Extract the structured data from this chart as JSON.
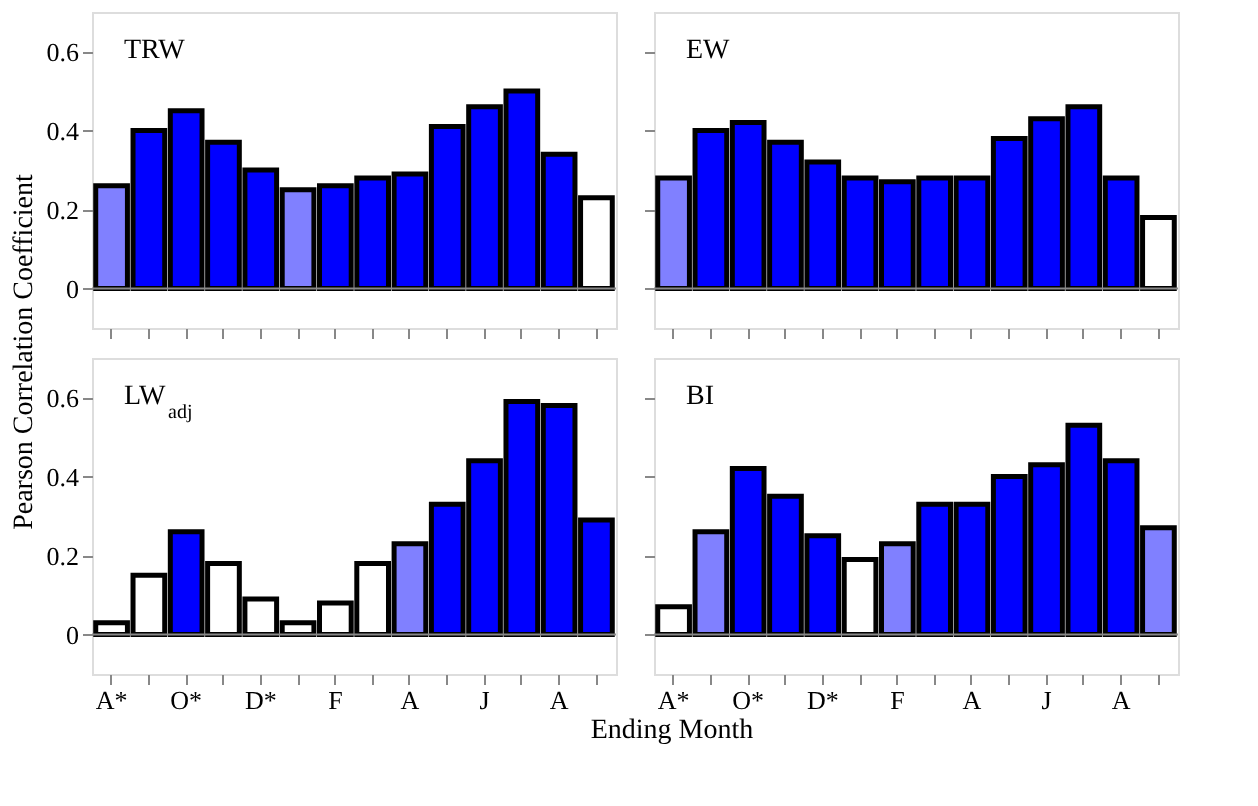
{
  "chart_data": [
    {
      "type": "bar",
      "title": "TRW",
      "ylabel": "Pearson Correlation Coefficient",
      "categories": [
        "A*",
        null,
        "O*",
        null,
        "D*",
        null,
        "F",
        null,
        "A",
        null,
        "J",
        null,
        "A",
        null
      ],
      "values": [
        0.26,
        0.4,
        0.45,
        0.37,
        0.3,
        0.25,
        0.26,
        0.28,
        0.29,
        0.41,
        0.46,
        0.5,
        0.34,
        0.23
      ],
      "colors": [
        "#8080ff",
        "#0000ff",
        "#0000ff",
        "#0000ff",
        "#0000ff",
        "#8080ff",
        "#0000ff",
        "#0000ff",
        "#0000ff",
        "#0000ff",
        "#0000ff",
        "#0000ff",
        "#0000ff",
        "#ffffff"
      ],
      "ylim": [
        -0.1,
        0.7
      ],
      "yticks": [
        0,
        0.2,
        0.4,
        0.6
      ],
      "tick_labels": "y",
      "grid": false,
      "ref_lines": [
        {
          "axis": "y",
          "value": 0
        }
      ]
    },
    {
      "type": "bar",
      "title": "EW",
      "categories": [
        "A*",
        null,
        "O*",
        null,
        "D*",
        null,
        "F",
        null,
        "A",
        null,
        "J",
        null,
        "A",
        null
      ],
      "values": [
        0.28,
        0.4,
        0.42,
        0.37,
        0.32,
        0.28,
        0.27,
        0.28,
        0.28,
        0.38,
        0.43,
        0.46,
        0.28,
        0.18
      ],
      "colors": [
        "#8080ff",
        "#0000ff",
        "#0000ff",
        "#0000ff",
        "#0000ff",
        "#0000ff",
        "#0000ff",
        "#0000ff",
        "#0000ff",
        "#0000ff",
        "#0000ff",
        "#0000ff",
        "#0000ff",
        "#ffffff"
      ],
      "ylim": [
        -0.1,
        0.7
      ],
      "yticks": [
        0,
        0.2,
        0.4,
        0.6
      ],
      "tick_labels": false,
      "grid": false,
      "ref_lines": [
        {
          "axis": "y",
          "value": 0
        }
      ]
    },
    {
      "type": "bar",
      "title": "LW$_{adj}$",
      "categories": [
        "A*",
        null,
        "O*",
        null,
        "D*",
        null,
        "F",
        null,
        "A",
        null,
        "J",
        null,
        "A",
        null
      ],
      "values": [
        0.03,
        0.15,
        0.26,
        0.18,
        0.09,
        0.03,
        0.08,
        0.18,
        0.23,
        0.33,
        0.44,
        0.59,
        0.58,
        0.29
      ],
      "colors": [
        "#ffffff",
        "#ffffff",
        "#0000ff",
        "#ffffff",
        "#ffffff",
        "#ffffff",
        "#ffffff",
        "#ffffff",
        "#8080ff",
        "#0000ff",
        "#0000ff",
        "#0000ff",
        "#0000ff",
        "#0000ff"
      ],
      "ylim": [
        -0.1,
        0.7
      ],
      "yticks": [
        0,
        0.2,
        0.4,
        0.6
      ],
      "grid": false,
      "ref_lines": [
        {
          "axis": "y",
          "value": 0
        }
      ]
    },
    {
      "type": "bar",
      "title": "BI",
      "xlabel": "Ending Month",
      "categories": [
        "A*",
        null,
        "O*",
        null,
        "D*",
        null,
        "F",
        null,
        "A",
        null,
        "J",
        null,
        "A",
        null
      ],
      "values": [
        0.07,
        0.26,
        0.42,
        0.35,
        0.25,
        0.19,
        0.23,
        0.33,
        0.33,
        0.4,
        0.43,
        0.53,
        0.44,
        0.27
      ],
      "colors": [
        "#ffffff",
        "#8080ff",
        "#0000ff",
        "#0000ff",
        "#0000ff",
        "#ffffff",
        "#8080ff",
        "#0000ff",
        "#0000ff",
        "#0000ff",
        "#0000ff",
        "#0000ff",
        "#0000ff",
        "#8080ff"
      ],
      "ylim": [
        -0.1,
        0.7
      ],
      "yticks": [
        0,
        0.2,
        0.4,
        0.6
      ],
      "tick_labels": "x",
      "grid": false,
      "ref_lines": [
        {
          "axis": "y",
          "value": 0
        }
      ]
    }
  ]
}
